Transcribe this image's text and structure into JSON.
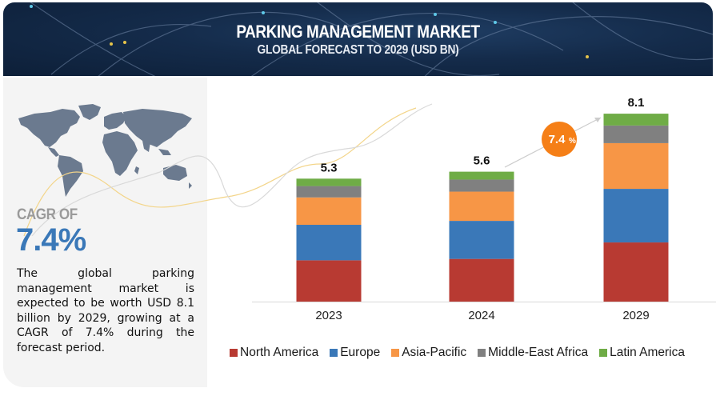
{
  "header": {
    "title": "PARKING MANAGEMENT MARKET",
    "subtitle": "GLOBAL FORECAST TO 2029 (USD BN)"
  },
  "summary": {
    "cagr_label": "CAGR OF",
    "cagr_value": "7.4%",
    "description": "The global parking management market is expected to be worth USD 8.1 billion by 2029, growing at a CAGR of 7.4% during the forecast period."
  },
  "growth_badge": {
    "value": "7.4",
    "unit": "%",
    "color": "#f57f17"
  },
  "chart_data": {
    "type": "bar",
    "stacked": true,
    "title": "Parking Management Market, Global Forecast to 2029 (USD BN)",
    "xlabel": "",
    "ylabel": "",
    "categories": [
      "2023",
      "2024",
      "2029"
    ],
    "totals": [
      "5.3",
      "5.6",
      "8.1"
    ],
    "total_values": [
      5.3,
      5.6,
      8.1
    ],
    "series": [
      {
        "name": "North America",
        "color": "#b83a32",
        "values": [
          1.78,
          1.84,
          2.55
        ]
      },
      {
        "name": "Europe",
        "color": "#3a78b8",
        "values": [
          1.53,
          1.64,
          2.31
        ]
      },
      {
        "name": "Asia-Pacific",
        "color": "#f79646",
        "values": [
          1.18,
          1.26,
          1.97
        ]
      },
      {
        "name": "Middle-East Africa",
        "color": "#808080",
        "values": [
          0.49,
          0.52,
          0.76
        ]
      },
      {
        "name": "Latin America",
        "color": "#6fac46",
        "values": [
          0.32,
          0.34,
          0.51
        ]
      }
    ],
    "ylim": [
      0,
      8.1
    ],
    "grid": false,
    "legend_position": "bottom",
    "annotation": "7.4% CAGR arrow from 2024 to 2029"
  }
}
